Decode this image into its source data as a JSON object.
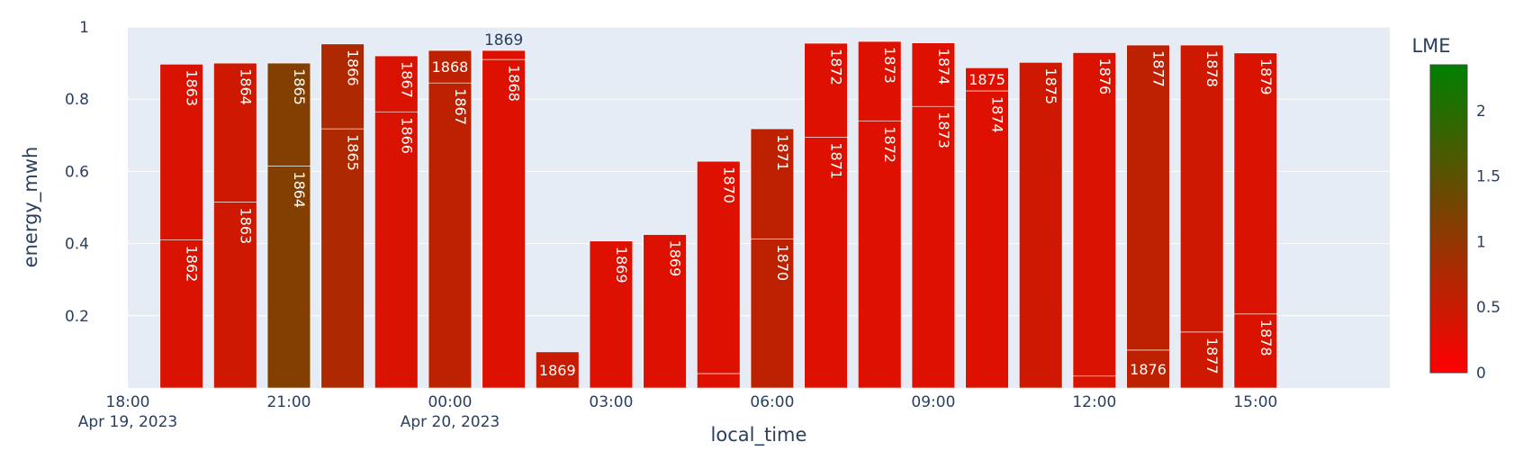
{
  "chart_data": {
    "type": "bar",
    "mode": "stacked",
    "xlabel": "local_time",
    "ylabel": "energy_mwh",
    "ylim": [
      0,
      1
    ],
    "y_ticks": [
      {
        "v": 0.2,
        "label": "0.2"
      },
      {
        "v": 0.4,
        "label": "0.4"
      },
      {
        "v": 0.6,
        "label": "0.6"
      },
      {
        "v": 0.8,
        "label": "0.8"
      },
      {
        "v": 1.0,
        "label": "1"
      }
    ],
    "x_range": [
      "2023-04-19 18:00",
      "2023-04-20 17:30"
    ],
    "x_ticks": [
      {
        "t": "2023-04-19 18:00",
        "line1": "18:00",
        "line2": "Apr 19, 2023"
      },
      {
        "t": "2023-04-19 21:00",
        "line1": "21:00",
        "line2": ""
      },
      {
        "t": "2023-04-20 00:00",
        "line1": "00:00",
        "line2": "Apr 20, 2023"
      },
      {
        "t": "2023-04-20 03:00",
        "line1": "03:00",
        "line2": ""
      },
      {
        "t": "2023-04-20 06:00",
        "line1": "06:00",
        "line2": ""
      },
      {
        "t": "2023-04-20 09:00",
        "line1": "09:00",
        "line2": ""
      },
      {
        "t": "2023-04-20 12:00",
        "line1": "12:00",
        "line2": ""
      },
      {
        "t": "2023-04-20 15:00",
        "line1": "15:00",
        "line2": ""
      }
    ],
    "colorbar": {
      "title": "LME",
      "range": [
        0,
        2.35
      ],
      "colors": [
        "#ff0000",
        "#008000"
      ],
      "ticks": [
        {
          "v": 0,
          "label": "0"
        },
        {
          "v": 0.5,
          "label": "0.5"
        },
        {
          "v": 1,
          "label": "1"
        },
        {
          "v": 1.5,
          "label": "1.5"
        },
        {
          "v": 2,
          "label": "2"
        }
      ]
    },
    "bars": [
      {
        "t": "2023-04-19 19:00",
        "segments": [
          {
            "label": "1862",
            "value": 0.41,
            "lme": 0.35
          },
          {
            "label": "1863",
            "value": 0.487,
            "lme": 0.35
          }
        ]
      },
      {
        "t": "2023-04-19 20:00",
        "segments": [
          {
            "label": "1863",
            "value": 0.515,
            "lme": 0.45
          },
          {
            "label": "1864",
            "value": 0.385,
            "lme": 0.45
          }
        ]
      },
      {
        "t": "2023-04-19 21:00",
        "segments": [
          {
            "label": "1864",
            "value": 0.615,
            "lme": 1.15
          },
          {
            "label": "1865",
            "value": 0.285,
            "lme": 1.15
          }
        ]
      },
      {
        "t": "2023-04-19 22:00",
        "segments": [
          {
            "label": "1865",
            "value": 0.718,
            "lme": 0.75
          },
          {
            "label": "1866",
            "value": 0.235,
            "lme": 0.75
          }
        ]
      },
      {
        "t": "2023-04-19 23:00",
        "segments": [
          {
            "label": "1866",
            "value": 0.765,
            "lme": 0.35
          },
          {
            "label": "1867",
            "value": 0.155,
            "lme": 0.35
          }
        ]
      },
      {
        "t": "2023-04-20 00:00",
        "segments": [
          {
            "label": "1867",
            "value": 0.845,
            "lme": 0.6
          },
          {
            "label": "1868",
            "value": 0.09,
            "lme": 0.6
          }
        ]
      },
      {
        "t": "2023-04-20 01:00",
        "segments": [
          {
            "label": "1868",
            "value": 0.91,
            "lme": 0.3
          },
          {
            "label": "1869",
            "value": 0.025,
            "lme": 0.3
          }
        ]
      },
      {
        "t": "2023-04-20 02:00",
        "segments": [
          {
            "label": "1869",
            "value": 0.1,
            "lme": 0.5
          }
        ]
      },
      {
        "t": "2023-04-20 03:00",
        "segments": [
          {
            "label": "1869",
            "value": 0.407,
            "lme": 0.3
          }
        ]
      },
      {
        "t": "2023-04-20 04:00",
        "segments": [
          {
            "label": "1869",
            "value": 0.425,
            "lme": 0.3
          }
        ]
      },
      {
        "t": "2023-04-20 05:00",
        "segments": [
          {
            "label": "",
            "value": 0.04,
            "lme": 0.3
          },
          {
            "label": "1870",
            "value": 0.588,
            "lme": 0.3
          }
        ]
      },
      {
        "t": "2023-04-20 06:00",
        "segments": [
          {
            "label": "1870",
            "value": 0.413,
            "lme": 0.6
          },
          {
            "label": "1871",
            "value": 0.305,
            "lme": 0.6
          }
        ]
      },
      {
        "t": "2023-04-20 07:00",
        "segments": [
          {
            "label": "1871",
            "value": 0.695,
            "lme": 0.3
          },
          {
            "label": "1872",
            "value": 0.26,
            "lme": 0.3
          }
        ]
      },
      {
        "t": "2023-04-20 08:00",
        "segments": [
          {
            "label": "1872",
            "value": 0.74,
            "lme": 0.3
          },
          {
            "label": "1873",
            "value": 0.22,
            "lme": 0.3
          }
        ]
      },
      {
        "t": "2023-04-20 09:00",
        "segments": [
          {
            "label": "1873",
            "value": 0.78,
            "lme": 0.3
          },
          {
            "label": "1874",
            "value": 0.176,
            "lme": 0.3
          }
        ]
      },
      {
        "t": "2023-04-20 10:00",
        "segments": [
          {
            "label": "1874",
            "value": 0.823,
            "lme": 0.3
          },
          {
            "label": "1875",
            "value": 0.064,
            "lme": 0.3
          }
        ]
      },
      {
        "t": "2023-04-20 11:00",
        "segments": [
          {
            "label": "1875",
            "value": 0.902,
            "lme": 0.45
          }
        ]
      },
      {
        "t": "2023-04-20 12:00",
        "segments": [
          {
            "label": "",
            "value": 0.033,
            "lme": 0.35
          },
          {
            "label": "1876",
            "value": 0.896,
            "lme": 0.35
          }
        ]
      },
      {
        "t": "2023-04-20 13:00",
        "segments": [
          {
            "label": "1876",
            "value": 0.105,
            "lme": 0.6
          },
          {
            "label": "1877",
            "value": 0.845,
            "lme": 0.6
          }
        ]
      },
      {
        "t": "2023-04-20 14:00",
        "segments": [
          {
            "label": "1877",
            "value": 0.155,
            "lme": 0.45
          },
          {
            "label": "1878",
            "value": 0.795,
            "lme": 0.45
          }
        ]
      },
      {
        "t": "2023-04-20 15:00",
        "segments": [
          {
            "label": "1878",
            "value": 0.205,
            "lme": 0.35
          },
          {
            "label": "1879",
            "value": 0.723,
            "lme": 0.35
          }
        ]
      }
    ]
  }
}
